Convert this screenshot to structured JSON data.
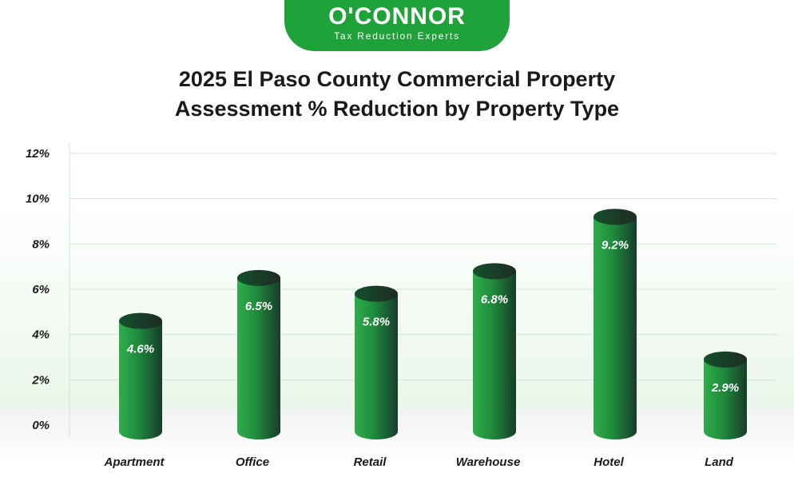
{
  "logo": {
    "name": "O'CONNOR",
    "tagline": "Tax Reduction Experts"
  },
  "colors": {
    "brand_green": "#1fa23a",
    "bar_light": "#2fae4b",
    "bar_dark": "#173c2a",
    "grid": "#cfe6d3"
  },
  "chart_data": {
    "type": "bar",
    "title": "2025 El Paso County Commercial Property Assessment % Reduction by Property Type",
    "title_lines": [
      "2025 El Paso County Commercial Property",
      "Assessment % Reduction by Property Type"
    ],
    "categories": [
      "Apartment",
      "Office",
      "Retail",
      "Warehouse",
      "Hotel",
      "Land"
    ],
    "values": [
      4.6,
      6.5,
      5.8,
      6.8,
      9.2,
      2.9
    ],
    "value_labels": [
      "4.6%",
      "6.5%",
      "5.8%",
      "6.8%",
      "9.2%",
      "2.9%"
    ],
    "y_ticks": [
      0,
      2,
      4,
      6,
      8,
      10,
      12
    ],
    "y_tick_labels": [
      "0%",
      "2%",
      "4%",
      "6%",
      "8%",
      "10%",
      "12%"
    ],
    "ylim": [
      0,
      12
    ],
    "xlabel": "",
    "ylabel": "",
    "grid": true,
    "legend": "none"
  }
}
